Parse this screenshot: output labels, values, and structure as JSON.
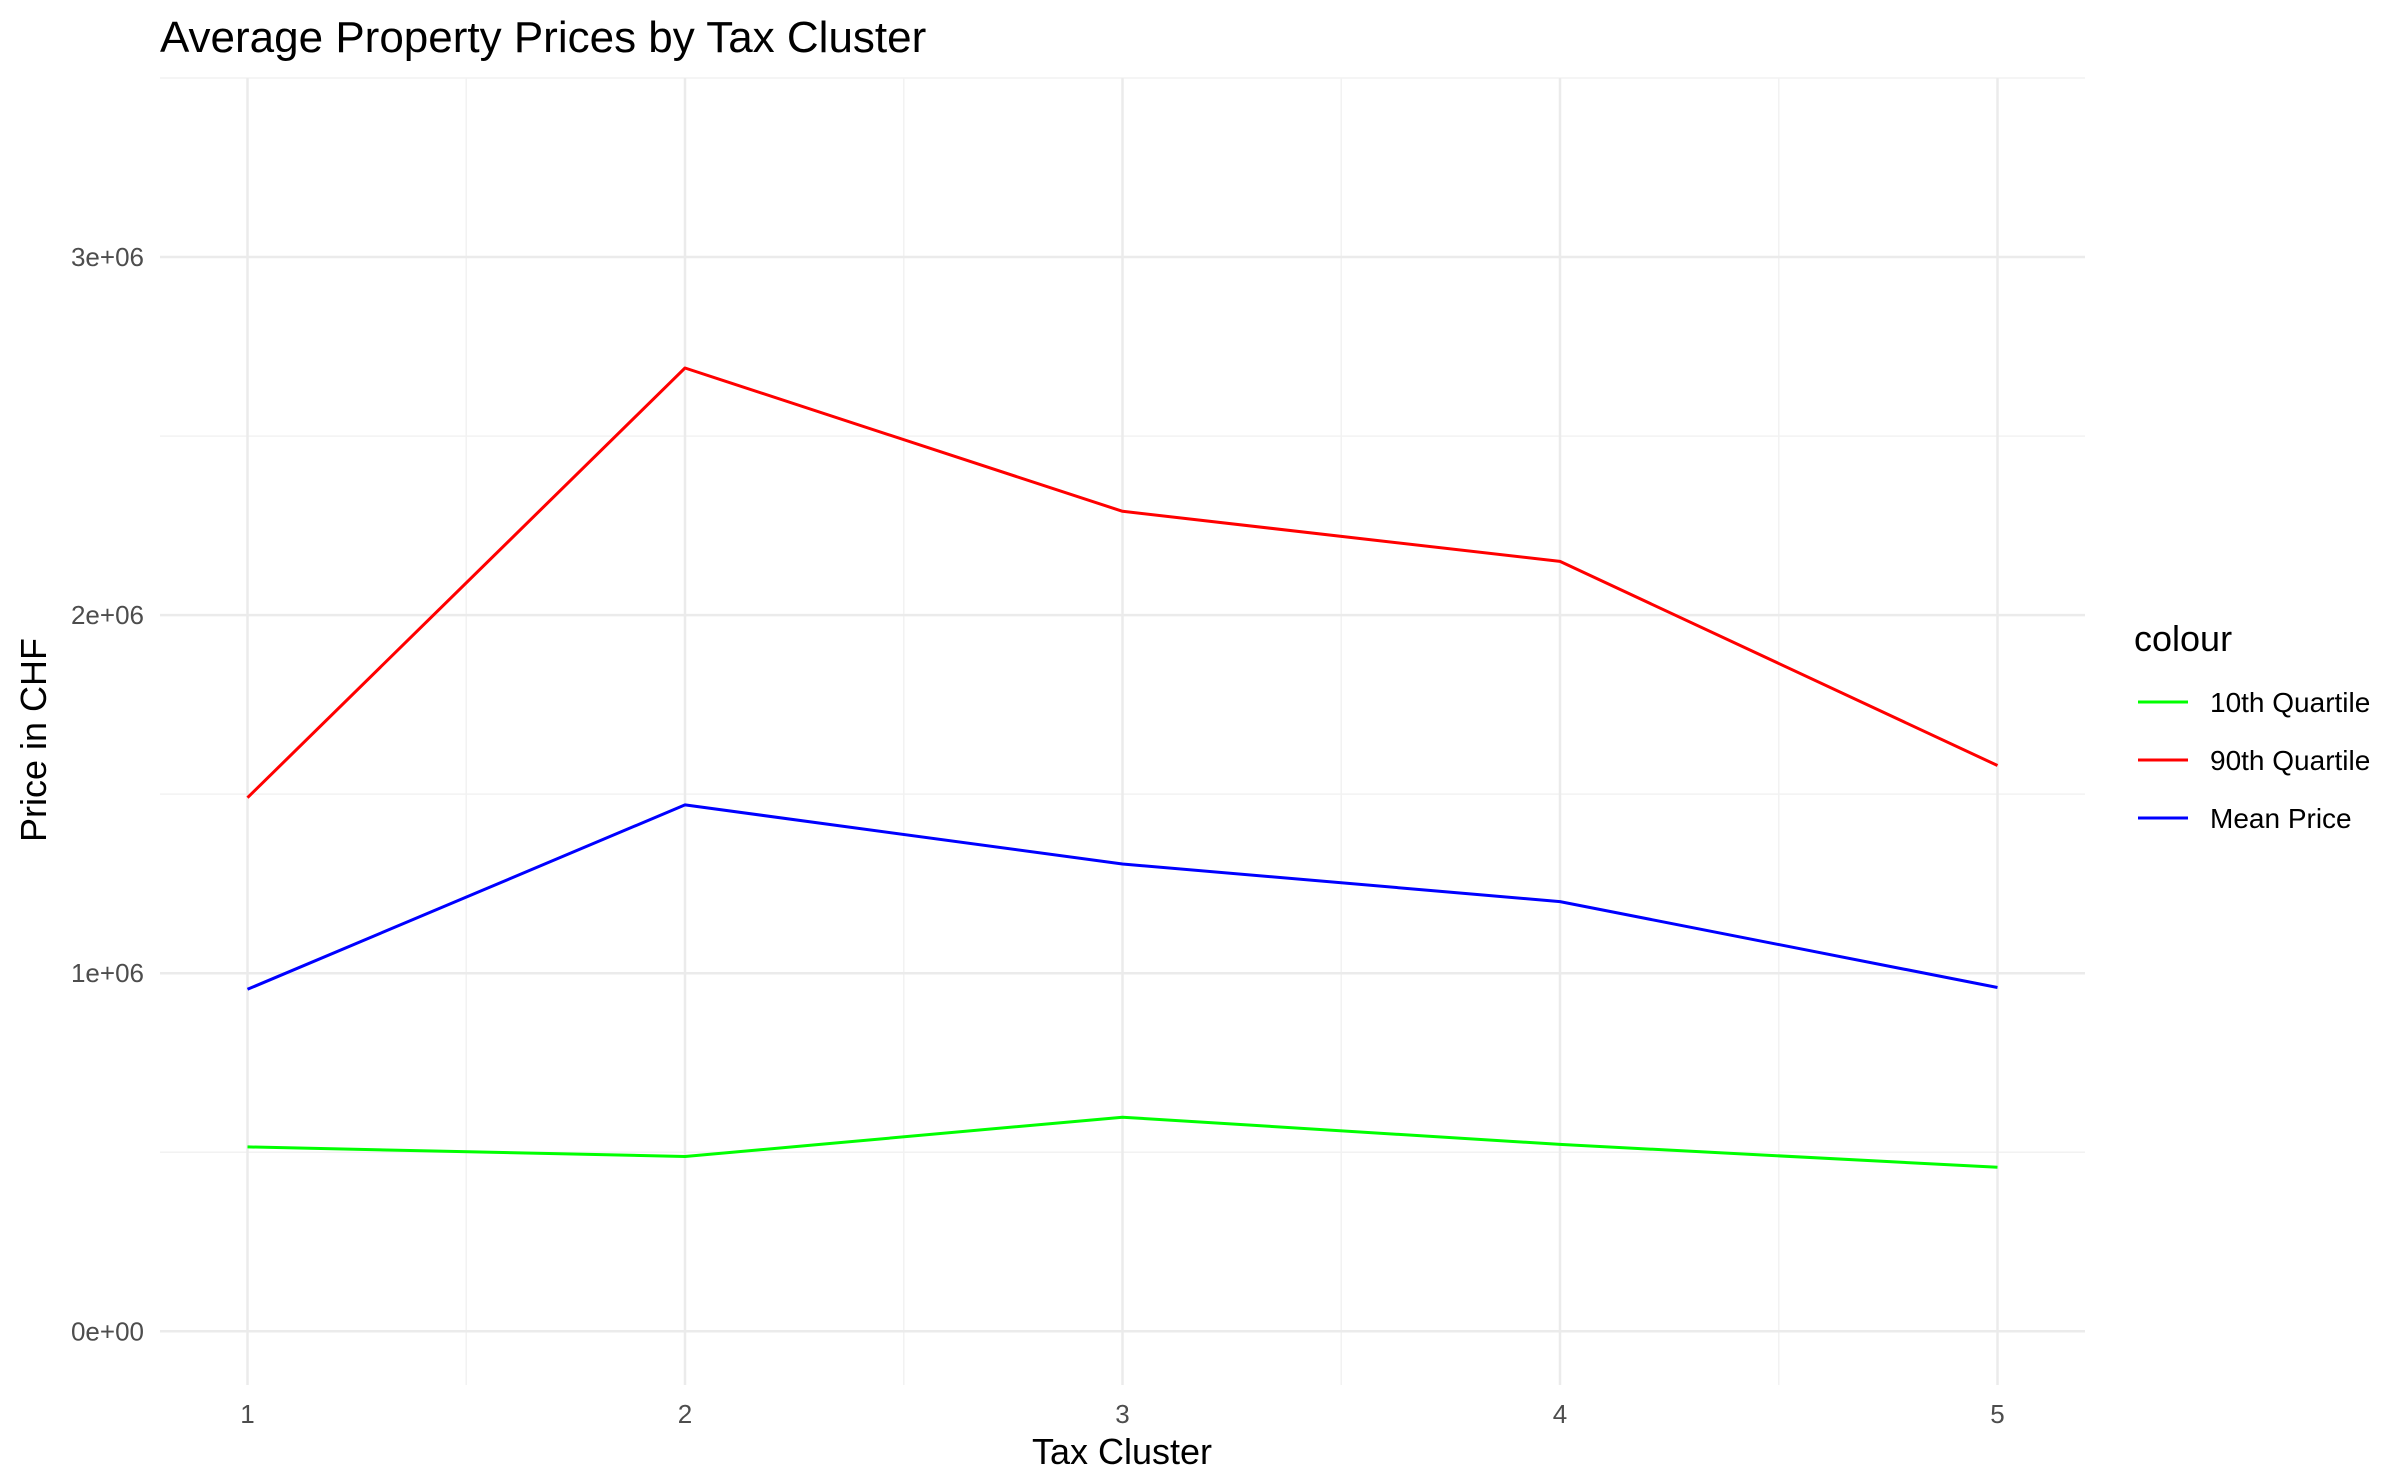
{
  "chart_data": {
    "type": "line",
    "title": "Average Property Prices by Tax Cluster",
    "xlabel": "Tax Cluster",
    "ylabel": "Price in CHF",
    "x": [
      1,
      2,
      3,
      4,
      5
    ],
    "x_tick_labels": [
      "1",
      "2",
      "3",
      "4",
      "5"
    ],
    "xlim": [
      0.8,
      5.2
    ],
    "ylim": [
      -150000,
      3500000
    ],
    "y_ticks": [
      0,
      1000000,
      2000000,
      3000000
    ],
    "y_tick_labels": [
      "0e+00",
      "1e+06",
      "2e+06",
      "3e+06"
    ],
    "grid": true,
    "legend": {
      "title": "colour",
      "position": "right"
    },
    "series": [
      {
        "name": "10th Quartile",
        "color": "#00FF00",
        "values": [
          515000,
          488000,
          598000,
          522000,
          458000
        ]
      },
      {
        "name": "90th Quartile",
        "color": "#FF0000",
        "values": [
          1490000,
          2690000,
          2290000,
          2150000,
          1580000
        ]
      },
      {
        "name": "Mean Price",
        "color": "#0000FF",
        "values": [
          955000,
          1470000,
          1305000,
          1200000,
          960000
        ]
      }
    ]
  }
}
